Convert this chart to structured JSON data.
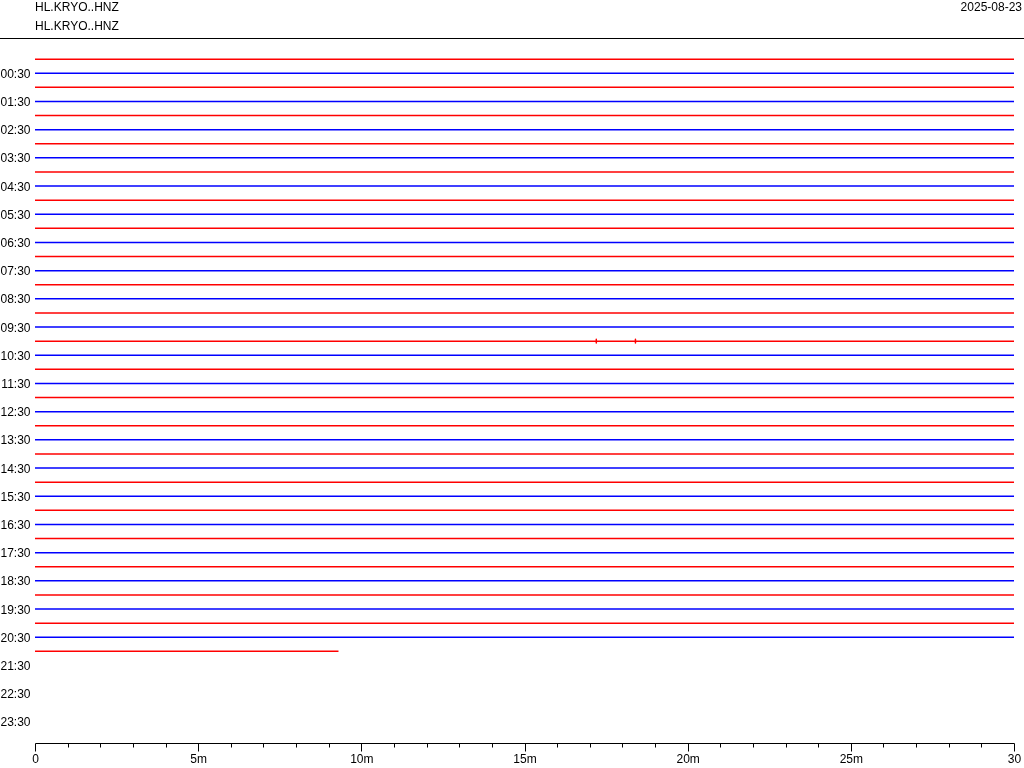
{
  "chart_data": {
    "type": "line",
    "title": "HL.KRYO..HNZ",
    "subtitle": "HL.KRYO..HNZ",
    "annotations": [
      "2025-08-23"
    ],
    "xlim": [
      0,
      30
    ],
    "xticks": [
      0,
      {
        "value": 1,
        "label": null
      },
      {
        "value": 2,
        "label": null
      },
      {
        "value": 3,
        "label": null
      },
      {
        "value": 4,
        "label": null
      },
      {
        "value": 5,
        "label": "5m"
      },
      {
        "value": 6,
        "label": null
      },
      {
        "value": 7,
        "label": null
      },
      {
        "value": 8,
        "label": null
      },
      {
        "value": 9,
        "label": null
      },
      {
        "value": 10,
        "label": "10m"
      },
      {
        "value": 11,
        "label": null
      },
      {
        "value": 12,
        "label": null
      },
      {
        "value": 13,
        "label": null
      },
      {
        "value": 14,
        "label": null
      },
      {
        "value": 15,
        "label": "15m"
      },
      {
        "value": 16,
        "label": null
      },
      {
        "value": 17,
        "label": null
      },
      {
        "value": 18,
        "label": null
      },
      {
        "value": 19,
        "label": null
      },
      {
        "value": 20,
        "label": "20m"
      },
      {
        "value": 21,
        "label": null
      },
      {
        "value": 22,
        "label": null
      },
      {
        "value": 23,
        "label": null
      },
      {
        "value": 24,
        "label": null
      },
      {
        "value": 25,
        "label": "25m"
      },
      {
        "value": 26,
        "label": null
      },
      {
        "value": 27,
        "label": null
      },
      {
        "value": 28,
        "label": null
      },
      {
        "value": 29,
        "label": null
      },
      30
    ],
    "ylim": [
      24.25,
      -0.75
    ],
    "yticks": [
      {
        "value": 0.5,
        "label": "00:30"
      },
      {
        "value": 1.5,
        "label": "01:30"
      },
      {
        "value": 2.5,
        "label": "02:30"
      },
      {
        "value": 3.5,
        "label": "03:30"
      },
      {
        "value": 4.5,
        "label": "04:30"
      },
      {
        "value": 5.5,
        "label": "05:30"
      },
      {
        "value": 6.5,
        "label": "06:30"
      },
      {
        "value": 7.5,
        "label": "07:30"
      },
      {
        "value": 8.5,
        "label": "08:30"
      },
      {
        "value": 9.5,
        "label": "09:30"
      },
      {
        "value": 10.5,
        "label": "10:30"
      },
      {
        "value": 11.5,
        "label": "11:30"
      },
      {
        "value": 12.5,
        "label": "12:30"
      },
      {
        "value": 13.5,
        "label": "13:30"
      },
      {
        "value": 14.5,
        "label": "14:30"
      },
      {
        "value": 15.5,
        "label": "15:30"
      },
      {
        "value": 16.5,
        "label": "16:30"
      },
      {
        "value": 17.5,
        "label": "17:30"
      },
      {
        "value": 18.5,
        "label": "18:30"
      },
      {
        "value": 19.5,
        "label": "19:30"
      },
      {
        "value": 20.5,
        "label": "20:30"
      },
      {
        "value": 21.5,
        "label": "21:30"
      },
      {
        "value": 22.5,
        "label": "22:30"
      },
      {
        "value": 23.5,
        "label": "23:30"
      }
    ],
    "series": [
      {
        "color": "#ff0000",
        "x": [
          0,
          30
        ],
        "values": [
          0,
          0
        ]
      },
      {
        "color": "#0000ff",
        "x": [
          0,
          30
        ],
        "values": [
          0.5,
          0.5
        ]
      },
      {
        "color": "#ff0000",
        "x": [
          0,
          30
        ],
        "values": [
          1,
          1
        ]
      },
      {
        "color": "#0000ff",
        "x": [
          0,
          30
        ],
        "values": [
          1.5,
          1.5
        ]
      },
      {
        "color": "#ff0000",
        "x": [
          0,
          30
        ],
        "values": [
          2,
          2
        ]
      },
      {
        "color": "#0000ff",
        "x": [
          0,
          30
        ],
        "values": [
          2.5,
          2.5
        ]
      },
      {
        "color": "#ff0000",
        "x": [
          0,
          30
        ],
        "values": [
          3,
          3
        ]
      },
      {
        "color": "#0000ff",
        "x": [
          0,
          30
        ],
        "values": [
          3.5,
          3.5
        ]
      },
      {
        "color": "#ff0000",
        "x": [
          0,
          30
        ],
        "values": [
          4,
          4
        ]
      },
      {
        "color": "#0000ff",
        "x": [
          0,
          30
        ],
        "values": [
          4.5,
          4.5
        ]
      },
      {
        "color": "#ff0000",
        "x": [
          0,
          30
        ],
        "values": [
          5,
          5
        ]
      },
      {
        "color": "#0000ff",
        "x": [
          0,
          30
        ],
        "values": [
          5.5,
          5.5
        ]
      },
      {
        "color": "#ff0000",
        "x": [
          0,
          30
        ],
        "values": [
          6,
          6
        ]
      },
      {
        "color": "#0000ff",
        "x": [
          0,
          30
        ],
        "values": [
          6.5,
          6.5
        ]
      },
      {
        "color": "#ff0000",
        "x": [
          0,
          30
        ],
        "values": [
          7,
          7
        ]
      },
      {
        "color": "#0000ff",
        "x": [
          0,
          30
        ],
        "values": [
          7.5,
          7.5
        ]
      },
      {
        "color": "#ff0000",
        "x": [
          0,
          30
        ],
        "values": [
          8,
          8
        ]
      },
      {
        "color": "#0000ff",
        "x": [
          0,
          30
        ],
        "values": [
          8.5,
          8.5
        ]
      },
      {
        "color": "#ff0000",
        "x": [
          0,
          30
        ],
        "values": [
          9,
          9
        ]
      },
      {
        "color": "#0000ff",
        "x": [
          0,
          30
        ],
        "values": [
          9.5,
          9.5
        ]
      },
      {
        "color": "#ff0000",
        "x": [
          0,
          17.2,
          17.2,
          17.2,
          17.2,
          18.4,
          18.4,
          18.4,
          18.4,
          30
        ],
        "values": [
          10,
          10,
          9.93,
          10.07,
          10,
          10,
          9.93,
          10.07,
          10,
          10
        ]
      },
      {
        "color": "#0000ff",
        "x": [
          0,
          30
        ],
        "values": [
          10.5,
          10.5
        ]
      },
      {
        "color": "#ff0000",
        "x": [
          0,
          30
        ],
        "values": [
          11,
          11
        ]
      },
      {
        "color": "#0000ff",
        "x": [
          0,
          30
        ],
        "values": [
          11.5,
          11.5
        ]
      },
      {
        "color": "#ff0000",
        "x": [
          0,
          30
        ],
        "values": [
          12,
          12
        ]
      },
      {
        "color": "#0000ff",
        "x": [
          0,
          30
        ],
        "values": [
          12.5,
          12.5
        ]
      },
      {
        "color": "#ff0000",
        "x": [
          0,
          30
        ],
        "values": [
          13,
          13
        ]
      },
      {
        "color": "#0000ff",
        "x": [
          0,
          30
        ],
        "values": [
          13.5,
          13.5
        ]
      },
      {
        "color": "#ff0000",
        "x": [
          0,
          30
        ],
        "values": [
          14,
          14
        ]
      },
      {
        "color": "#0000ff",
        "x": [
          0,
          30
        ],
        "values": [
          14.5,
          14.5
        ]
      },
      {
        "color": "#ff0000",
        "x": [
          0,
          30
        ],
        "values": [
          15,
          15
        ]
      },
      {
        "color": "#0000ff",
        "x": [
          0,
          30
        ],
        "values": [
          15.5,
          15.5
        ]
      },
      {
        "color": "#ff0000",
        "x": [
          0,
          30
        ],
        "values": [
          16,
          16
        ]
      },
      {
        "color": "#0000ff",
        "x": [
          0,
          30
        ],
        "values": [
          16.5,
          16.5
        ]
      },
      {
        "color": "#ff0000",
        "x": [
          0,
          30
        ],
        "values": [
          17,
          17
        ]
      },
      {
        "color": "#0000ff",
        "x": [
          0,
          30
        ],
        "values": [
          17.5,
          17.5
        ]
      },
      {
        "color": "#ff0000",
        "x": [
          0,
          30
        ],
        "values": [
          18,
          18
        ]
      },
      {
        "color": "#0000ff",
        "x": [
          0,
          30
        ],
        "values": [
          18.5,
          18.5
        ]
      },
      {
        "color": "#ff0000",
        "x": [
          0,
          30
        ],
        "values": [
          19,
          19
        ]
      },
      {
        "color": "#0000ff",
        "x": [
          0,
          30
        ],
        "values": [
          19.5,
          19.5
        ]
      },
      {
        "color": "#ff0000",
        "x": [
          0,
          30
        ],
        "values": [
          20,
          20
        ]
      },
      {
        "color": "#0000ff",
        "x": [
          0,
          30
        ],
        "values": [
          20.5,
          20.5
        ]
      },
      {
        "color": "#ff0000",
        "x": [
          0,
          9.3
        ],
        "values": [
          21,
          21
        ]
      }
    ]
  }
}
